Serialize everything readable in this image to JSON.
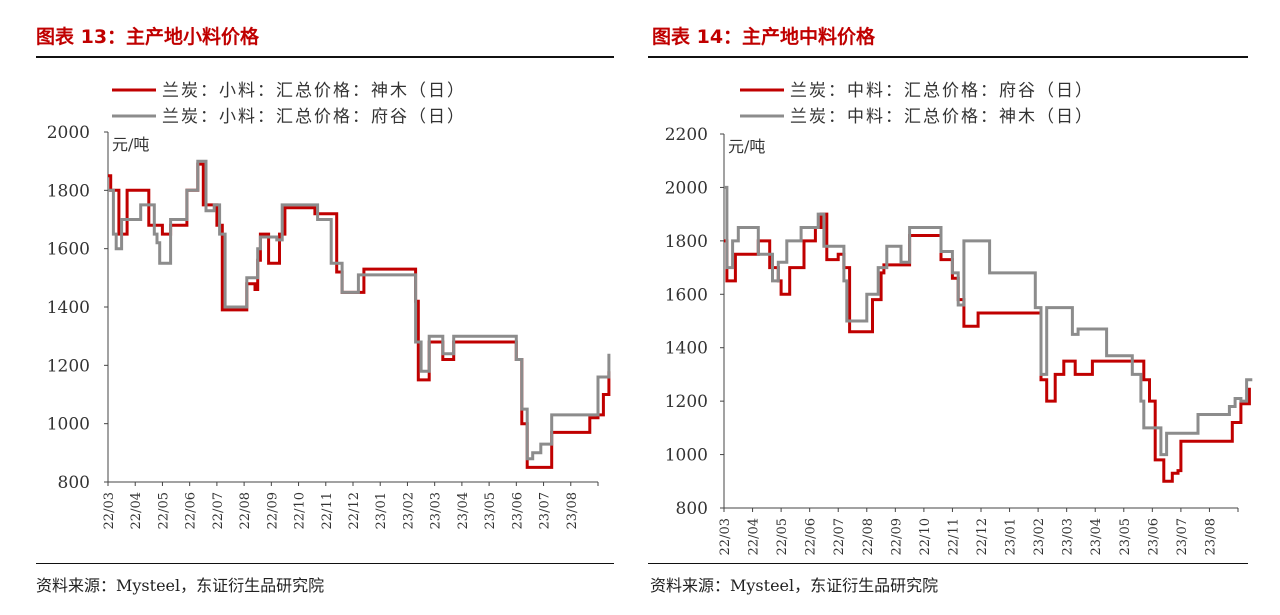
{
  "colors": {
    "title": "#c00000",
    "red": "#c00000",
    "gray": "#8c8c8c"
  },
  "chart_data": [
    {
      "type": "line",
      "title": "图表 13：主产地小料价格",
      "ylabel": "元/吨",
      "ylim": [
        800,
        2000
      ],
      "yticks": [
        "800",
        "1000",
        "1200",
        "1400",
        "1600",
        "1800",
        "2000"
      ],
      "x_ticks": [
        "22/03",
        "22/04",
        "22/05",
        "22/06",
        "22/07",
        "22/08",
        "22/09",
        "22/10",
        "22/11",
        "22/12",
        "23/01",
        "23/02",
        "23/03",
        "23/04",
        "23/05",
        "23/06",
        "23/07",
        "23/08"
      ],
      "legend_position": "top",
      "source": "资料来源：Mysteel，东证衍生品研究院",
      "series": [
        {
          "name": "兰炭：小料：汇总价格：神木（日）",
          "color": "#c00000",
          "points": [
            [
              0,
              1850
            ],
            [
              0.1,
              1800
            ],
            [
              0.4,
              1650
            ],
            [
              0.7,
              1800
            ],
            [
              1.3,
              1800
            ],
            [
              1.5,
              1680
            ],
            [
              2.0,
              1650
            ],
            [
              2.3,
              1680
            ],
            [
              2.8,
              1680
            ],
            [
              2.9,
              1800
            ],
            [
              3.3,
              1890
            ],
            [
              3.5,
              1750
            ],
            [
              3.9,
              1750
            ],
            [
              4.0,
              1680
            ],
            [
              4.2,
              1390
            ],
            [
              4.9,
              1390
            ],
            [
              5.1,
              1480
            ],
            [
              5.4,
              1460
            ],
            [
              5.5,
              1560
            ],
            [
              5.6,
              1650
            ],
            [
              5.9,
              1550
            ],
            [
              6.2,
              1550
            ],
            [
              6.3,
              1650
            ],
            [
              6.5,
              1740
            ],
            [
              7.5,
              1740
            ],
            [
              7.6,
              1720
            ],
            [
              8.1,
              1720
            ],
            [
              8.4,
              1520
            ],
            [
              8.6,
              1450
            ],
            [
              9.2,
              1450
            ],
            [
              9.4,
              1530
            ],
            [
              10.0,
              1530
            ],
            [
              11.0,
              1530
            ],
            [
              11.3,
              1420
            ],
            [
              11.4,
              1150
            ],
            [
              11.7,
              1150
            ],
            [
              11.8,
              1280
            ],
            [
              12.2,
              1280
            ],
            [
              12.3,
              1220
            ],
            [
              12.6,
              1220
            ],
            [
              12.7,
              1280
            ],
            [
              13.0,
              1280
            ],
            [
              14.0,
              1280
            ],
            [
              14.8,
              1280
            ],
            [
              15.0,
              1220
            ],
            [
              15.2,
              1000
            ],
            [
              15.4,
              850
            ],
            [
              16.2,
              850
            ],
            [
              16.3,
              970
            ],
            [
              16.9,
              970
            ],
            [
              17.5,
              970
            ],
            [
              17.7,
              1020
            ],
            [
              18.0,
              1030
            ],
            [
              18.2,
              1100
            ],
            [
              18.4,
              1180
            ]
          ]
        },
        {
          "name": "兰炭：小料：汇总价格：府谷（日）",
          "color": "#8c8c8c",
          "points": [
            [
              0,
              1800
            ],
            [
              0.2,
              1650
            ],
            [
              0.3,
              1600
            ],
            [
              0.5,
              1700
            ],
            [
              1.0,
              1700
            ],
            [
              1.2,
              1750
            ],
            [
              1.5,
              1750
            ],
            [
              1.7,
              1650
            ],
            [
              1.8,
              1620
            ],
            [
              1.9,
              1550
            ],
            [
              2.2,
              1550
            ],
            [
              2.3,
              1700
            ],
            [
              2.8,
              1700
            ],
            [
              2.9,
              1800
            ],
            [
              3.3,
              1900
            ],
            [
              3.6,
              1730
            ],
            [
              3.9,
              1750
            ],
            [
              4.1,
              1650
            ],
            [
              4.3,
              1400
            ],
            [
              5.0,
              1400
            ],
            [
              5.1,
              1500
            ],
            [
              5.4,
              1500
            ],
            [
              5.5,
              1600
            ],
            [
              5.6,
              1640
            ],
            [
              6.0,
              1640
            ],
            [
              6.2,
              1630
            ],
            [
              6.4,
              1750
            ],
            [
              7.5,
              1750
            ],
            [
              7.7,
              1700
            ],
            [
              8.0,
              1700
            ],
            [
              8.2,
              1550
            ],
            [
              8.5,
              1550
            ],
            [
              8.6,
              1450
            ],
            [
              9.1,
              1450
            ],
            [
              9.2,
              1510
            ],
            [
              10.0,
              1510
            ],
            [
              11.2,
              1510
            ],
            [
              11.3,
              1280
            ],
            [
              11.5,
              1180
            ],
            [
              11.7,
              1180
            ],
            [
              11.8,
              1300
            ],
            [
              12.2,
              1300
            ],
            [
              12.3,
              1240
            ],
            [
              12.6,
              1240
            ],
            [
              12.7,
              1300
            ],
            [
              13.5,
              1300
            ],
            [
              14.8,
              1300
            ],
            [
              15.0,
              1220
            ],
            [
              15.2,
              1050
            ],
            [
              15.4,
              880
            ],
            [
              15.6,
              900
            ],
            [
              15.8,
              900
            ],
            [
              15.9,
              930
            ],
            [
              16.1,
              930
            ],
            [
              16.3,
              1030
            ],
            [
              17.5,
              1030
            ],
            [
              17.8,
              1030
            ],
            [
              18.0,
              1160
            ],
            [
              18.2,
              1160
            ],
            [
              18.4,
              1240
            ]
          ]
        }
      ]
    },
    {
      "type": "line",
      "title": "图表 14：主产地中料价格",
      "ylabel": "元/吨",
      "ylim": [
        800,
        2200
      ],
      "yticks": [
        "800",
        "1000",
        "1200",
        "1400",
        "1600",
        "1800",
        "2000",
        "2200"
      ],
      "x_ticks": [
        "22/03",
        "22/04",
        "22/05",
        "22/06",
        "22/07",
        "22/08",
        "22/09",
        "22/10",
        "22/11",
        "22/12",
        "23/01",
        "23/02",
        "23/03",
        "23/04",
        "23/05",
        "23/06",
        "23/07",
        "23/08"
      ],
      "legend_position": "top",
      "source": "资料来源：Mysteel，东证衍生品研究院",
      "series": [
        {
          "name": "兰炭：中料：汇总价格：府谷（日）",
          "color": "#c00000",
          "points": [
            [
              0,
              1800
            ],
            [
              0.1,
              1650
            ],
            [
              0.4,
              1750
            ],
            [
              1.0,
              1750
            ],
            [
              1.2,
              1800
            ],
            [
              1.5,
              1800
            ],
            [
              1.6,
              1700
            ],
            [
              1.9,
              1650
            ],
            [
              2.0,
              1600
            ],
            [
              2.2,
              1600
            ],
            [
              2.3,
              1700
            ],
            [
              2.6,
              1700
            ],
            [
              2.8,
              1800
            ],
            [
              3.2,
              1850
            ],
            [
              3.4,
              1900
            ],
            [
              3.6,
              1730
            ],
            [
              4.0,
              1750
            ],
            [
              4.2,
              1700
            ],
            [
              4.4,
              1460
            ],
            [
              5.0,
              1460
            ],
            [
              5.2,
              1580
            ],
            [
              5.4,
              1580
            ],
            [
              5.5,
              1680
            ],
            [
              5.6,
              1710
            ],
            [
              6.4,
              1710
            ],
            [
              6.5,
              1820
            ],
            [
              7.4,
              1820
            ],
            [
              7.6,
              1730
            ],
            [
              7.9,
              1730
            ],
            [
              8.0,
              1660
            ],
            [
              8.2,
              1580
            ],
            [
              8.4,
              1480
            ],
            [
              8.8,
              1480
            ],
            [
              8.9,
              1530
            ],
            [
              10.0,
              1530
            ],
            [
              10.9,
              1530
            ],
            [
              11.1,
              1280
            ],
            [
              11.3,
              1200
            ],
            [
              11.5,
              1200
            ],
            [
              11.6,
              1300
            ],
            [
              11.9,
              1350
            ],
            [
              12.2,
              1350
            ],
            [
              12.3,
              1300
            ],
            [
              12.7,
              1300
            ],
            [
              12.9,
              1350
            ],
            [
              13.5,
              1350
            ],
            [
              14.6,
              1350
            ],
            [
              14.7,
              1280
            ],
            [
              14.9,
              1200
            ],
            [
              15.1,
              980
            ],
            [
              15.4,
              900
            ],
            [
              15.6,
              900
            ],
            [
              15.7,
              930
            ],
            [
              15.9,
              940
            ],
            [
              16.0,
              1050
            ],
            [
              17.6,
              1050
            ],
            [
              17.8,
              1120
            ],
            [
              18.1,
              1190
            ],
            [
              18.4,
              1250
            ]
          ]
        },
        {
          "name": "兰炭：中料：汇总价格：神木（日）",
          "color": "#8c8c8c",
          "points": [
            [
              0,
              2000
            ],
            [
              0.1,
              1700
            ],
            [
              0.3,
              1800
            ],
            [
              0.5,
              1850
            ],
            [
              1.0,
              1850
            ],
            [
              1.2,
              1750
            ],
            [
              1.5,
              1750
            ],
            [
              1.7,
              1650
            ],
            [
              1.9,
              1720
            ],
            [
              2.2,
              1800
            ],
            [
              2.5,
              1800
            ],
            [
              2.7,
              1850
            ],
            [
              3.0,
              1850
            ],
            [
              3.3,
              1900
            ],
            [
              3.5,
              1780
            ],
            [
              4.0,
              1780
            ],
            [
              4.2,
              1650
            ],
            [
              4.3,
              1500
            ],
            [
              4.9,
              1500
            ],
            [
              5.0,
              1600
            ],
            [
              5.3,
              1600
            ],
            [
              5.4,
              1700
            ],
            [
              5.7,
              1780
            ],
            [
              6.1,
              1780
            ],
            [
              6.2,
              1720
            ],
            [
              6.5,
              1850
            ],
            [
              7.5,
              1850
            ],
            [
              7.6,
              1760
            ],
            [
              7.9,
              1760
            ],
            [
              8.0,
              1680
            ],
            [
              8.2,
              1560
            ],
            [
              8.4,
              1800
            ],
            [
              9.1,
              1800
            ],
            [
              9.3,
              1680
            ],
            [
              10.0,
              1680
            ],
            [
              10.7,
              1680
            ],
            [
              10.9,
              1550
            ],
            [
              11.1,
              1300
            ],
            [
              11.3,
              1550
            ],
            [
              12.0,
              1550
            ],
            [
              12.2,
              1450
            ],
            [
              12.4,
              1470
            ],
            [
              13.3,
              1470
            ],
            [
              13.4,
              1370
            ],
            [
              14.1,
              1370
            ],
            [
              14.3,
              1300
            ],
            [
              14.6,
              1200
            ],
            [
              14.7,
              1100
            ],
            [
              15.1,
              1100
            ],
            [
              15.3,
              1000
            ],
            [
              15.5,
              1080
            ],
            [
              16.3,
              1080
            ],
            [
              16.6,
              1150
            ],
            [
              17.5,
              1150
            ],
            [
              17.7,
              1180
            ],
            [
              17.9,
              1210
            ],
            [
              18.1,
              1200
            ],
            [
              18.3,
              1280
            ],
            [
              18.5,
              1280
            ]
          ]
        }
      ]
    }
  ]
}
